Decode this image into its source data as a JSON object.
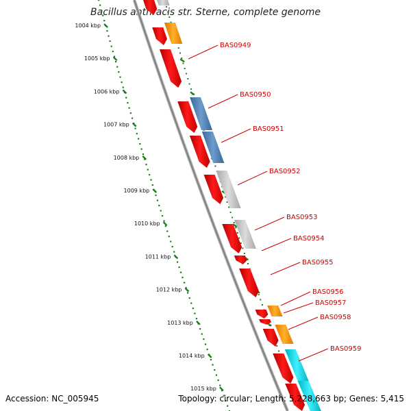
{
  "title": "Bacillus anthracis str. Sterne, complete genome",
  "accession_text": "Accession: NC_005945",
  "summary_text": "Topology: circular; Length: 5,228,663 bp; Genes: 5,415",
  "kbp_labels": [
    "1004 kbp",
    "1005 kbp",
    "1006 kbp",
    "1007 kbp",
    "1008 kbp",
    "1009 kbp",
    "1010 kbp",
    "1011 kbp",
    "1012 kbp",
    "1013 kbp",
    "1014 kbp",
    "1015 kbp"
  ],
  "gene_labels": [
    "BAS0949",
    "BAS0950",
    "BAS0951",
    "BAS0952",
    "BAS0953",
    "BAS0954",
    "BAS0955",
    "BAS0956",
    "BAS0957",
    "BAS0958",
    "BAS0959"
  ],
  "colors": {
    "forward_cds": "#ff0000",
    "blue_feature": "#4f81b7",
    "gray_feature": "#c0c0c0",
    "orange_feature": "#ff9900",
    "cyan_feature": "#00d9e6",
    "backbone": "#888888",
    "tick_green": "#1a7f1a",
    "label_red": "#cc0000"
  }
}
